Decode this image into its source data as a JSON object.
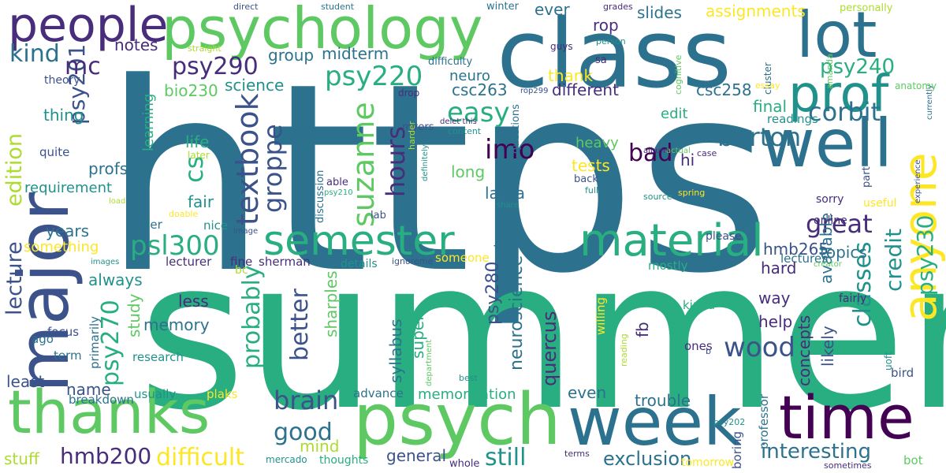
{
  "palette": {
    "dark_purple": "#440154",
    "indigo": "#472d7b",
    "slate_blue": "#3b528b",
    "steel_blue": "#2c728e",
    "teal": "#21918c",
    "jade": "#28ae80",
    "green": "#5ec962",
    "lime": "#addc30",
    "yellow": "#fde725"
  },
  "words": [
    {
      "text": "https",
      "color": "steel_blue"
    },
    {
      "text": "summer",
      "color": "jade"
    },
    {
      "text": "class",
      "color": "steel_blue"
    },
    {
      "text": "psychology",
      "color": "green"
    },
    {
      "text": "major",
      "color": "slate_blue"
    },
    {
      "text": "lot",
      "color": "steel_blue"
    },
    {
      "text": "people",
      "color": "indigo"
    },
    {
      "text": "well",
      "color": "steel_blue"
    },
    {
      "text": "prof",
      "color": "teal"
    },
    {
      "text": "thanks",
      "color": "green"
    },
    {
      "text": "psych",
      "color": "green"
    },
    {
      "text": "week",
      "color": "steel_blue"
    },
    {
      "text": "time",
      "color": "dark_purple"
    },
    {
      "text": "semester",
      "color": "jade"
    },
    {
      "text": "material",
      "color": "jade"
    },
    {
      "text": "anyone",
      "color": "yellow"
    },
    {
      "text": "lecture",
      "color": "slate_blue"
    },
    {
      "text": "edition",
      "color": "lime"
    },
    {
      "text": "kind",
      "color": "steel_blue"
    },
    {
      "text": "psy201",
      "color": "slate_blue"
    },
    {
      "text": "mc",
      "color": "indigo"
    },
    {
      "text": "psy290",
      "color": "indigo"
    },
    {
      "text": "psy220",
      "color": "jade"
    },
    {
      "text": "psy240",
      "color": "jade"
    },
    {
      "text": "psy230",
      "color": "jade"
    },
    {
      "text": "psy270",
      "color": "jade"
    },
    {
      "text": "psy280",
      "color": "slate_blue"
    },
    {
      "text": "psl300",
      "color": "jade"
    },
    {
      "text": "hmb200",
      "color": "indigo"
    },
    {
      "text": "hmb265",
      "color": "slate_blue"
    },
    {
      "text": "bio230",
      "color": "green"
    },
    {
      "text": "csc263",
      "color": "steel_blue"
    },
    {
      "text": "csc258",
      "color": "steel_blue"
    },
    {
      "text": "textbook",
      "color": "slate_blue"
    },
    {
      "text": "suzanne",
      "color": "green"
    },
    {
      "text": "groppe",
      "color": "slate_blue"
    },
    {
      "text": "hours",
      "color": "indigo"
    },
    {
      "text": "easy",
      "color": "jade"
    },
    {
      "text": "imo",
      "color": "dark_purple"
    },
    {
      "text": "corbit",
      "color": "steel_blue"
    },
    {
      "text": "burton",
      "color": "steel_blue"
    },
    {
      "text": "great",
      "color": "indigo"
    },
    {
      "text": "credit",
      "color": "teal"
    },
    {
      "text": "classes",
      "color": "teal"
    },
    {
      "text": "wood",
      "color": "slate_blue"
    },
    {
      "text": "probably",
      "color": "jade"
    },
    {
      "text": "better",
      "color": "slate_blue"
    },
    {
      "text": "brain",
      "color": "slate_blue"
    },
    {
      "text": "good",
      "color": "steel_blue"
    },
    {
      "text": "difficult",
      "color": "yellow"
    },
    {
      "text": "still",
      "color": "teal"
    },
    {
      "text": "interesting",
      "color": "steel_blue"
    },
    {
      "text": "exclusion",
      "color": "steel_blue"
    },
    {
      "text": "cs",
      "color": "jade"
    },
    {
      "text": "bad",
      "color": "dark_purple"
    },
    {
      "text": "requirement",
      "color": "teal"
    },
    {
      "text": "memory",
      "color": "steel_blue"
    },
    {
      "text": "assignments",
      "color": "yellow"
    },
    {
      "text": "slides",
      "color": "steel_blue"
    },
    {
      "text": "rop",
      "color": "indigo"
    },
    {
      "text": "ever",
      "color": "steel_blue"
    },
    {
      "text": "thank",
      "color": "yellow"
    },
    {
      "text": "group",
      "color": "steel_blue"
    },
    {
      "text": "midterm",
      "color": "steel_blue"
    },
    {
      "text": "notes",
      "color": "indigo"
    },
    {
      "text": "science",
      "color": "teal"
    },
    {
      "text": "neuro",
      "color": "steel_blue"
    },
    {
      "text": "different",
      "color": "indigo"
    },
    {
      "text": "final",
      "color": "jade"
    },
    {
      "text": "edit",
      "color": "jade"
    },
    {
      "text": "readings",
      "color": "teal"
    },
    {
      "text": "available",
      "color": "steel_blue"
    },
    {
      "text": "topics",
      "color": "steel_blue"
    },
    {
      "text": "lectures",
      "color": "steel_blue"
    },
    {
      "text": "hard",
      "color": "indigo"
    },
    {
      "text": "way",
      "color": "indigo"
    },
    {
      "text": "help",
      "color": "indigo"
    },
    {
      "text": "likely",
      "color": "slate_blue"
    },
    {
      "text": "concepts",
      "color": "indigo"
    },
    {
      "text": "neuroscience",
      "color": "steel_blue"
    },
    {
      "text": "quercus",
      "color": "indigo"
    },
    {
      "text": "syllabus",
      "color": "steel_blue"
    },
    {
      "text": "super",
      "color": "jade"
    },
    {
      "text": "sharples",
      "color": "green"
    },
    {
      "text": "fall",
      "color": "steel_blue"
    },
    {
      "text": "long",
      "color": "green"
    },
    {
      "text": "laura",
      "color": "steel_blue"
    },
    {
      "text": "tests",
      "color": "yellow"
    },
    {
      "text": "heavy",
      "color": "green"
    },
    {
      "text": "hi",
      "color": "indigo"
    },
    {
      "text": "fb",
      "color": "indigo"
    },
    {
      "text": "trouble",
      "color": "steel_blue"
    },
    {
      "text": "even",
      "color": "steel_blue"
    },
    {
      "text": "memorization",
      "color": "jade"
    },
    {
      "text": "general",
      "color": "slate_blue"
    },
    {
      "text": "advance",
      "color": "steel_blue"
    },
    {
      "text": "least",
      "color": "slate_blue"
    },
    {
      "text": "name",
      "color": "slate_blue"
    },
    {
      "text": "study",
      "color": "green"
    },
    {
      "text": "always",
      "color": "teal"
    },
    {
      "text": "less",
      "color": "indigo"
    },
    {
      "text": "fair",
      "color": "teal"
    },
    {
      "text": "years",
      "color": "steel_blue"
    },
    {
      "text": "something",
      "color": "yellow"
    },
    {
      "text": "profs",
      "color": "steel_blue"
    },
    {
      "text": "life",
      "color": "jade"
    },
    {
      "text": "learning",
      "color": "jade"
    },
    {
      "text": "thing",
      "color": "teal"
    },
    {
      "text": "quite",
      "color": "slate_blue"
    },
    {
      "text": "theory",
      "color": "slate_blue"
    },
    {
      "text": "mind",
      "color": "lime"
    },
    {
      "text": "stuff",
      "color": "lime"
    },
    {
      "text": "focus",
      "color": "slate_blue"
    },
    {
      "text": "primarily",
      "color": "steel_blue"
    },
    {
      "text": "breakdown",
      "color": "steel_blue"
    },
    {
      "text": "usually",
      "color": "teal"
    },
    {
      "text": "research",
      "color": "teal"
    },
    {
      "text": "term",
      "color": "steel_blue"
    },
    {
      "text": "ago",
      "color": "steel_blue"
    },
    {
      "text": "sherman",
      "color": "indigo"
    },
    {
      "text": "lecturer",
      "color": "indigo"
    },
    {
      "text": "fine",
      "color": "indigo"
    },
    {
      "text": "nice",
      "color": "teal"
    },
    {
      "text": "easier",
      "color": "steel_blue"
    },
    {
      "text": "plaks",
      "color": "yellow"
    },
    {
      "text": "bc",
      "color": "lime"
    },
    {
      "text": "details",
      "color": "teal"
    },
    {
      "text": "ignoreme",
      "color": "slate_blue"
    },
    {
      "text": "someone",
      "color": "yellow"
    },
    {
      "text": "mostly",
      "color": "jade"
    },
    {
      "text": "kinda",
      "color": "jade"
    },
    {
      "text": "willing",
      "color": "yellow"
    },
    {
      "text": "professor",
      "color": "steel_blue"
    },
    {
      "text": "boring",
      "color": "slate_blue"
    },
    {
      "text": "bird",
      "color": "slate_blue"
    },
    {
      "text": "ones",
      "color": "indigo"
    },
    {
      "text": "uoft",
      "color": "teal"
    },
    {
      "text": "sometimes",
      "color": "indigo"
    },
    {
      "text": "bot",
      "color": "green"
    },
    {
      "text": "tomorrow",
      "color": "yellow"
    },
    {
      "text": "terms",
      "color": "indigo"
    },
    {
      "text": "whole",
      "color": "indigo"
    },
    {
      "text": "thoughts",
      "color": "jade"
    },
    {
      "text": "mercado",
      "color": "teal"
    },
    {
      "text": "psy202",
      "color": "teal"
    },
    {
      "text": "reading",
      "color": "lime"
    },
    {
      "text": "department",
      "color": "green"
    },
    {
      "text": "best",
      "color": "teal"
    },
    {
      "text": "grades",
      "color": "indigo"
    },
    {
      "text": "creator",
      "color": "green"
    },
    {
      "text": "online",
      "color": "indigo"
    },
    {
      "text": "please",
      "color": "slate_blue"
    },
    {
      "text": "sorry",
      "color": "indigo"
    },
    {
      "text": "useful",
      "color": "yellow"
    },
    {
      "text": "fairly",
      "color": "indigo"
    },
    {
      "text": "part",
      "color": "slate_blue"
    },
    {
      "text": "experience",
      "color": "slate_blue"
    },
    {
      "text": "currently",
      "color": "steel_blue"
    },
    {
      "text": "anatomy",
      "color": "green"
    },
    {
      "text": "amanda",
      "color": "green"
    },
    {
      "text": "cluster",
      "color": "steel_blue"
    },
    {
      "text": "essay",
      "color": "yellow"
    },
    {
      "text": "personally",
      "color": "lime"
    },
    {
      "text": "winter",
      "color": "steel_blue"
    },
    {
      "text": "guys",
      "color": "indigo"
    },
    {
      "text": "person",
      "color": "teal"
    },
    {
      "text": "sa",
      "color": "indigo"
    },
    {
      "text": "difficulty",
      "color": "steel_blue"
    },
    {
      "text": "cognitive",
      "color": "green"
    },
    {
      "text": "rop299",
      "color": "slate_blue"
    },
    {
      "text": "drop",
      "color": "indigo"
    },
    {
      "text": "myers",
      "color": "slate_blue"
    },
    {
      "text": "harder",
      "color": "lime"
    },
    {
      "text": "definitely",
      "color": "teal"
    },
    {
      "text": "content",
      "color": "teal"
    },
    {
      "text": "questions",
      "color": "steel_blue"
    },
    {
      "text": "delet this",
      "color": "indigo"
    },
    {
      "text": "able",
      "color": "indigo"
    },
    {
      "text": "psy210",
      "color": "jade"
    },
    {
      "text": "discussion",
      "color": "steel_blue"
    },
    {
      "text": "back",
      "color": "slate_blue"
    },
    {
      "text": "full",
      "color": "teal"
    },
    {
      "text": "share",
      "color": "teal"
    },
    {
      "text": "lab",
      "color": "slate_blue"
    },
    {
      "text": "source",
      "color": "teal"
    },
    {
      "text": "spring",
      "color": "yellow"
    },
    {
      "text": "case",
      "color": "indigo"
    },
    {
      "text": "albums",
      "color": "indigo"
    },
    {
      "text": "actual",
      "color": "green"
    },
    {
      "text": "doable",
      "color": "yellow"
    },
    {
      "text": "later",
      "color": "lime"
    },
    {
      "text": "image",
      "color": "slate_blue"
    },
    {
      "text": "images",
      "color": "teal"
    },
    {
      "text": "load",
      "color": "lime"
    },
    {
      "text": "direct",
      "color": "slate_blue"
    },
    {
      "text": "student",
      "color": "steel_blue"
    },
    {
      "text": "straight",
      "color": "lime"
    },
    {
      "text": "b",
      "color": "slate_blue"
    }
  ]
}
